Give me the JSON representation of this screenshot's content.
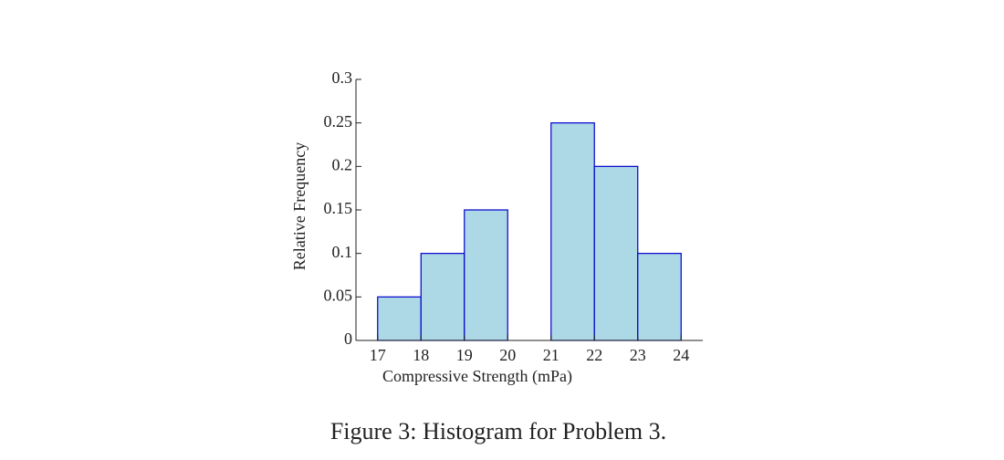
{
  "chart_data": {
    "type": "histogram",
    "xlabel": "Compressive Strength (mPa)",
    "ylabel": "Relative Frequency",
    "caption": "Figure 3: Histogram for Problem 3.",
    "bins": [
      17,
      18,
      19,
      20,
      21,
      22,
      23,
      24
    ],
    "values": [
      0.05,
      0.1,
      0.15,
      0,
      0.25,
      0.2,
      0.1
    ],
    "color": "#add8e6",
    "edgecolor": "#0000cc",
    "xlim": [
      16.5,
      24.5
    ],
    "ylim": [
      0,
      0.3
    ],
    "xticks": [
      17,
      18,
      19,
      20,
      21,
      22,
      23,
      24
    ],
    "yticks": [
      0,
      0.05,
      0.1,
      0.15,
      0.2,
      0.25,
      0.3
    ]
  }
}
